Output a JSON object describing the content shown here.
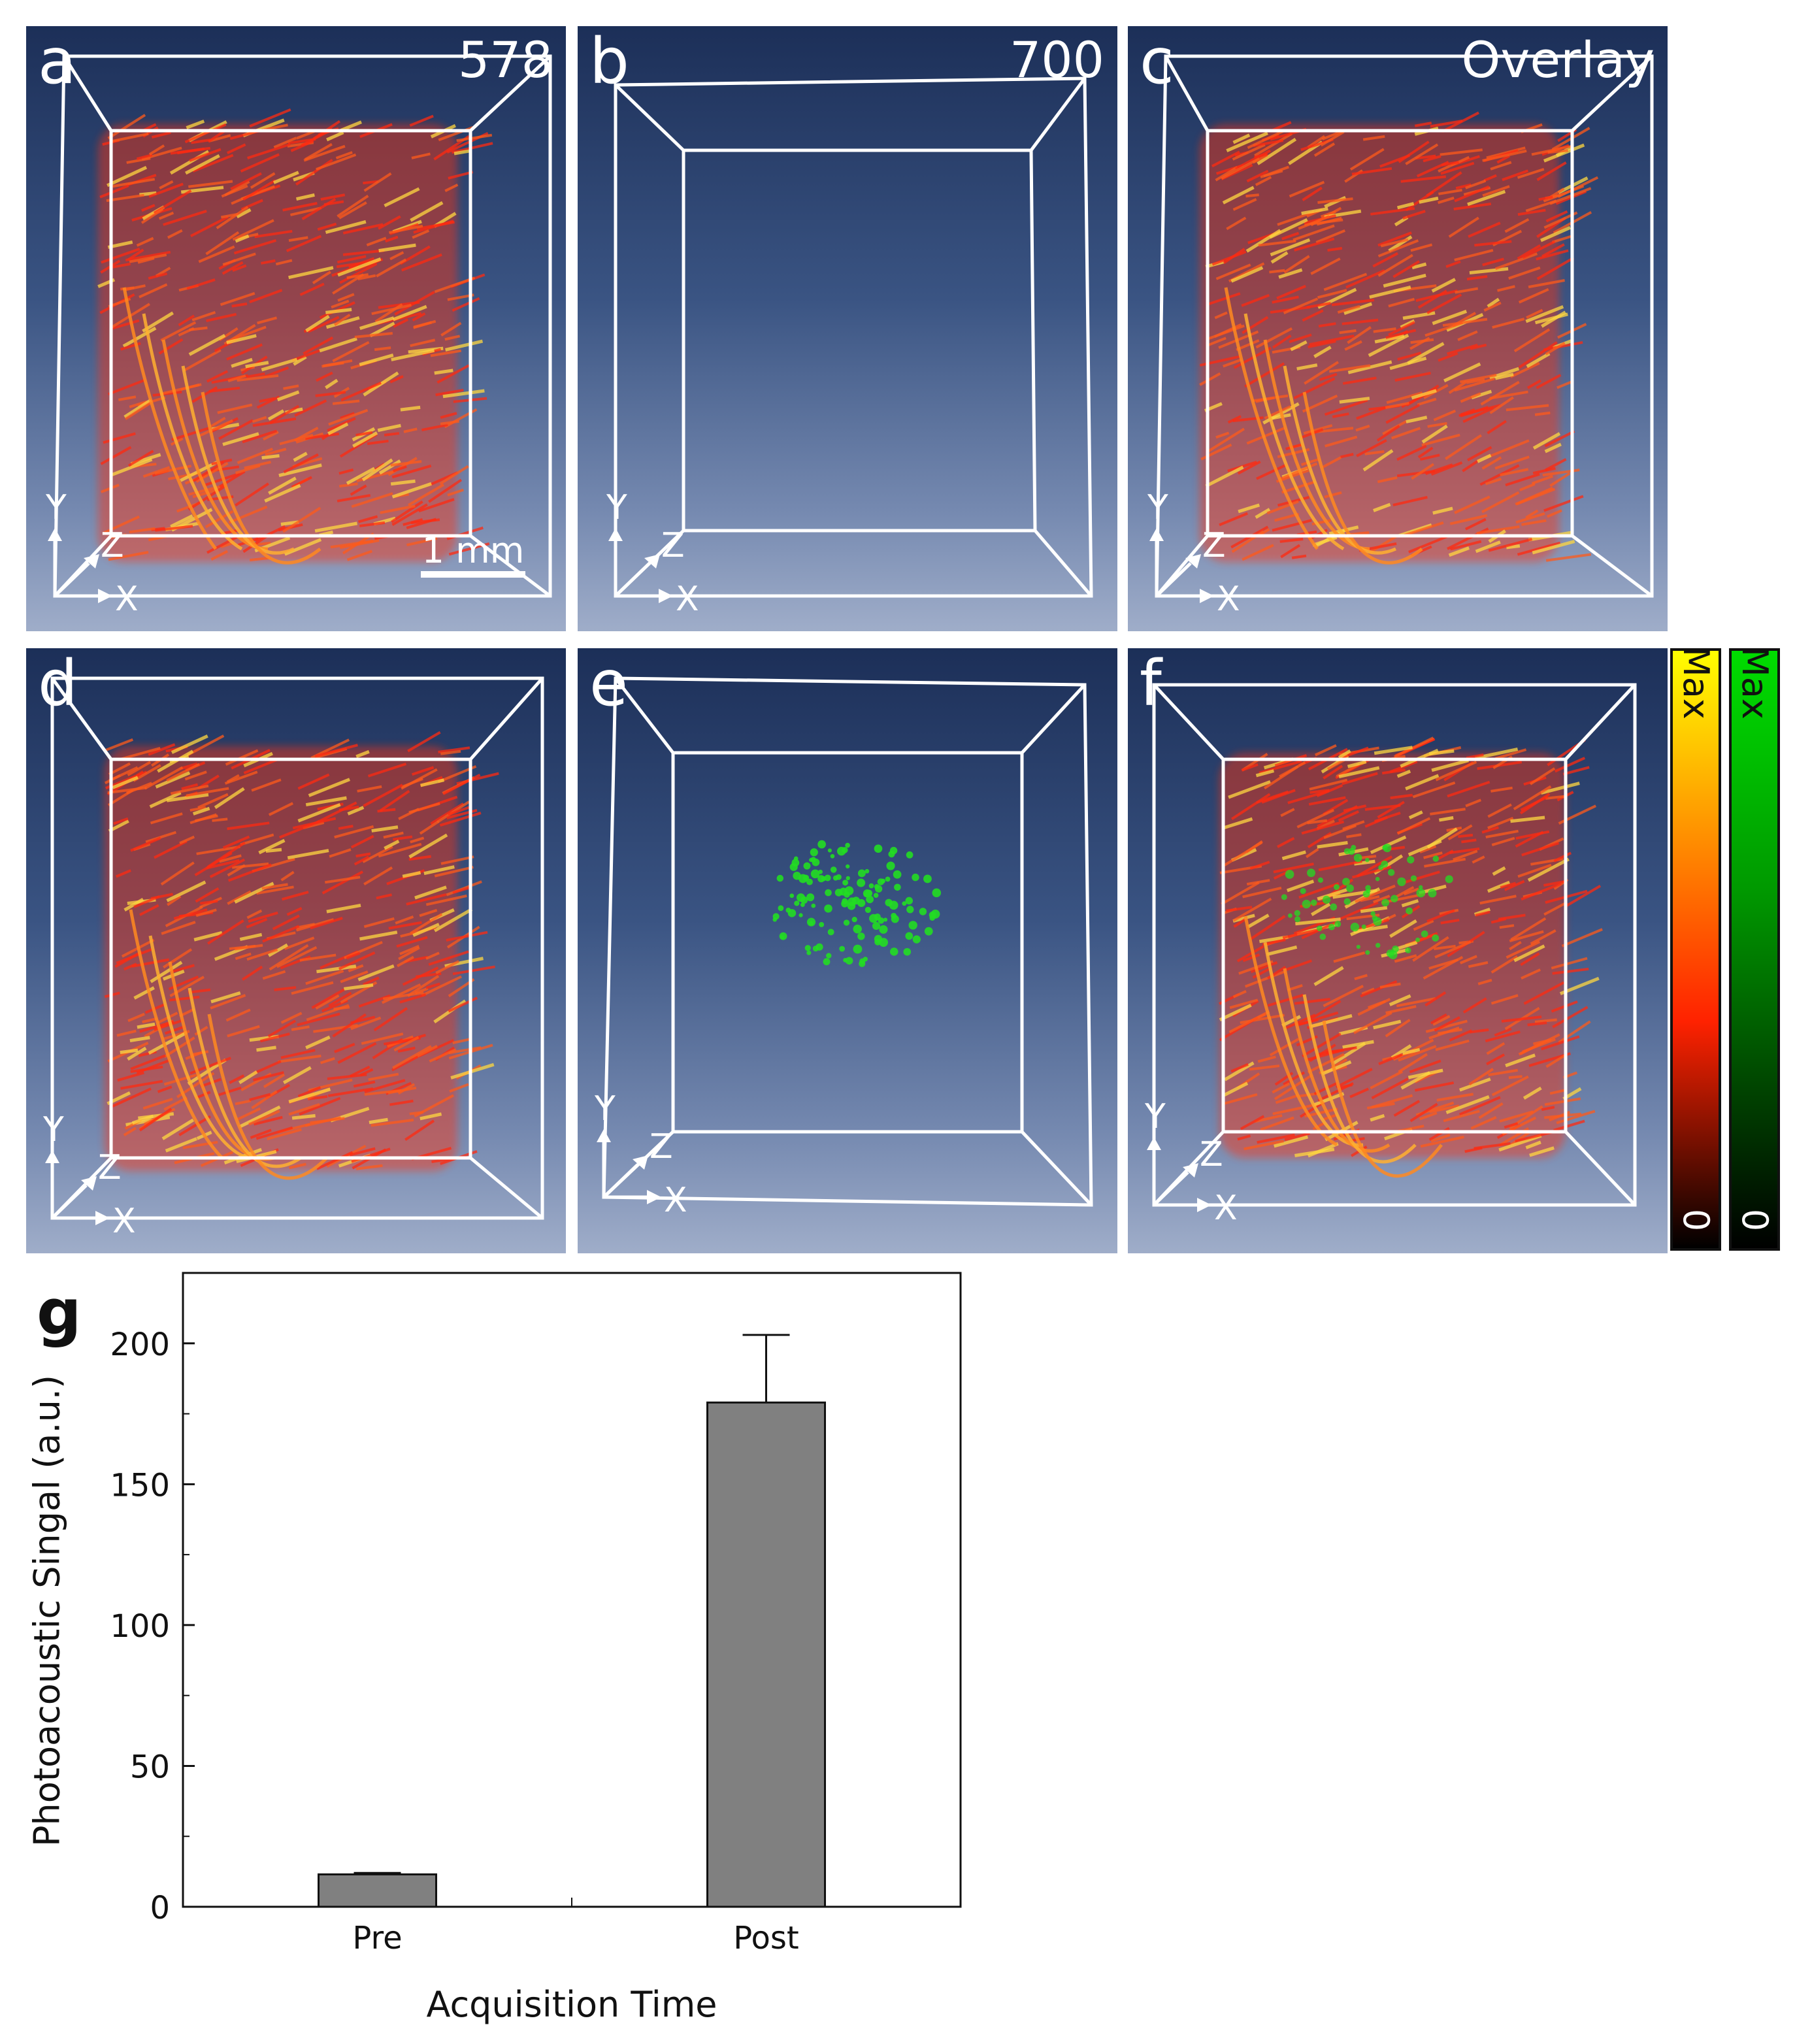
{
  "panels": [
    {
      "label": "a",
      "title": "578",
      "signal": "red",
      "scale_bar": "1 mm",
      "axis_labels": {
        "y": "Y",
        "z": "Z",
        "x": "X"
      }
    },
    {
      "label": "b",
      "title": "700",
      "signal": "none",
      "axis_labels": {
        "y": "Y",
        "z": "Z",
        "x": "X"
      }
    },
    {
      "label": "c",
      "title": "Overlay",
      "signal": "red",
      "axis_labels": {
        "y": "Y",
        "z": "Z",
        "x": "X"
      }
    },
    {
      "label": "d",
      "title": "",
      "signal": "red",
      "axis_labels": {
        "y": "Y",
        "z": "Z",
        "x": "X"
      }
    },
    {
      "label": "e",
      "title": "",
      "signal": "green",
      "axis_labels": {
        "y": "Y",
        "z": "Z",
        "x": "X"
      }
    },
    {
      "label": "f",
      "title": "",
      "signal": "red+green",
      "axis_labels": {
        "y": "Y",
        "z": "Z",
        "x": "X"
      }
    }
  ],
  "colorbars": [
    {
      "max_label": "Max",
      "min_label": "0",
      "colors": [
        "#ffff00",
        "#ffa500",
        "#ff2200",
        "#000000"
      ]
    },
    {
      "max_label": "Max",
      "min_label": "0",
      "colors": [
        "#00dd00",
        "#000000"
      ]
    }
  ],
  "colors": {
    "panel_top": "#1c2f58",
    "panel_bottom": "#9fadc9",
    "vessel_red": "#ff3010",
    "vessel_yellow": "#ffd840",
    "particle_green": "#22dd22",
    "bar_fill": "#808080"
  },
  "figure_g": {
    "label": "g",
    "chart_data": {
      "type": "bar",
      "categories": [
        "Pre",
        "Post"
      ],
      "values": [
        11.5,
        179
      ],
      "error": [
        0.5,
        24
      ],
      "xlabel": "Acquisition Time",
      "ylabel": "Photoacoustic Singal (a.u.)",
      "ylim": [
        0,
        225
      ],
      "yticks": [
        0,
        50,
        100,
        150,
        200
      ],
      "grid": false,
      "legend": "none"
    }
  }
}
